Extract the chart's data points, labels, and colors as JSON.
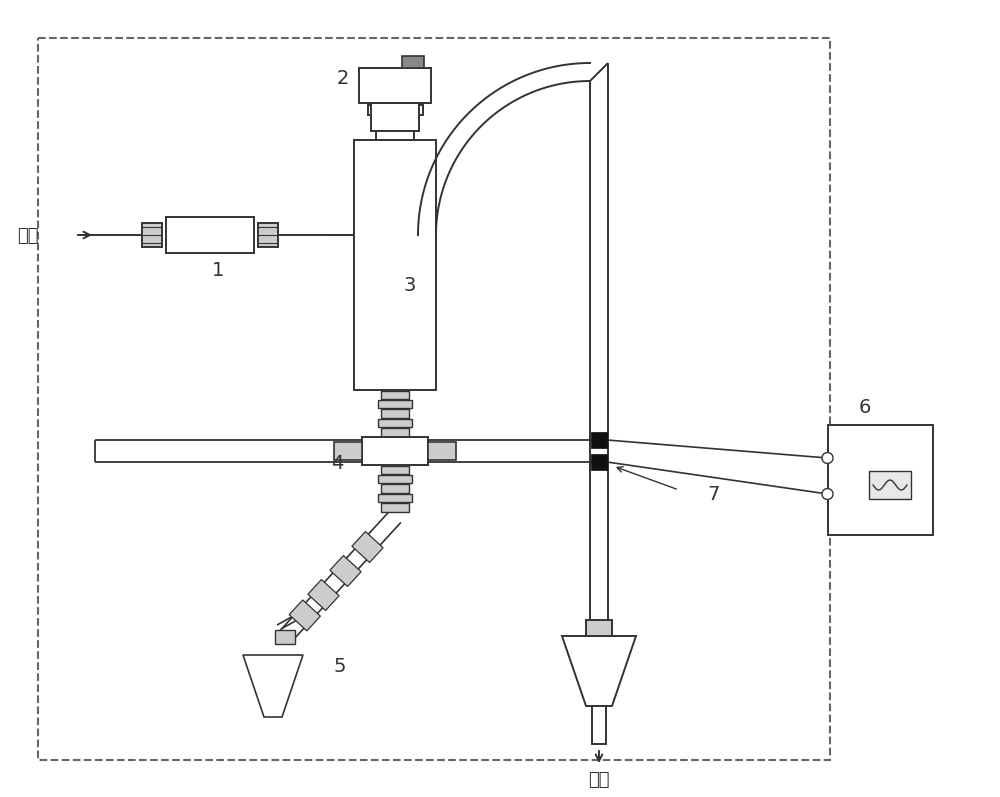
{
  "background_color": "#ffffff",
  "line_color": "#333333",
  "gray_fill": "#cccccc",
  "dark_fill": "#111111",
  "label_fontsize": 14,
  "text_fontsize": 13,
  "lw": 1.4,
  "labels": {
    "inlet": "进液",
    "outlet": "出液",
    "comp1": "1",
    "comp2": "2",
    "comp3": "3",
    "comp4": "4",
    "comp5": "5",
    "comp6": "6",
    "comp7": "7"
  },
  "figsize": [
    10.0,
    7.97
  ],
  "dpi": 100
}
